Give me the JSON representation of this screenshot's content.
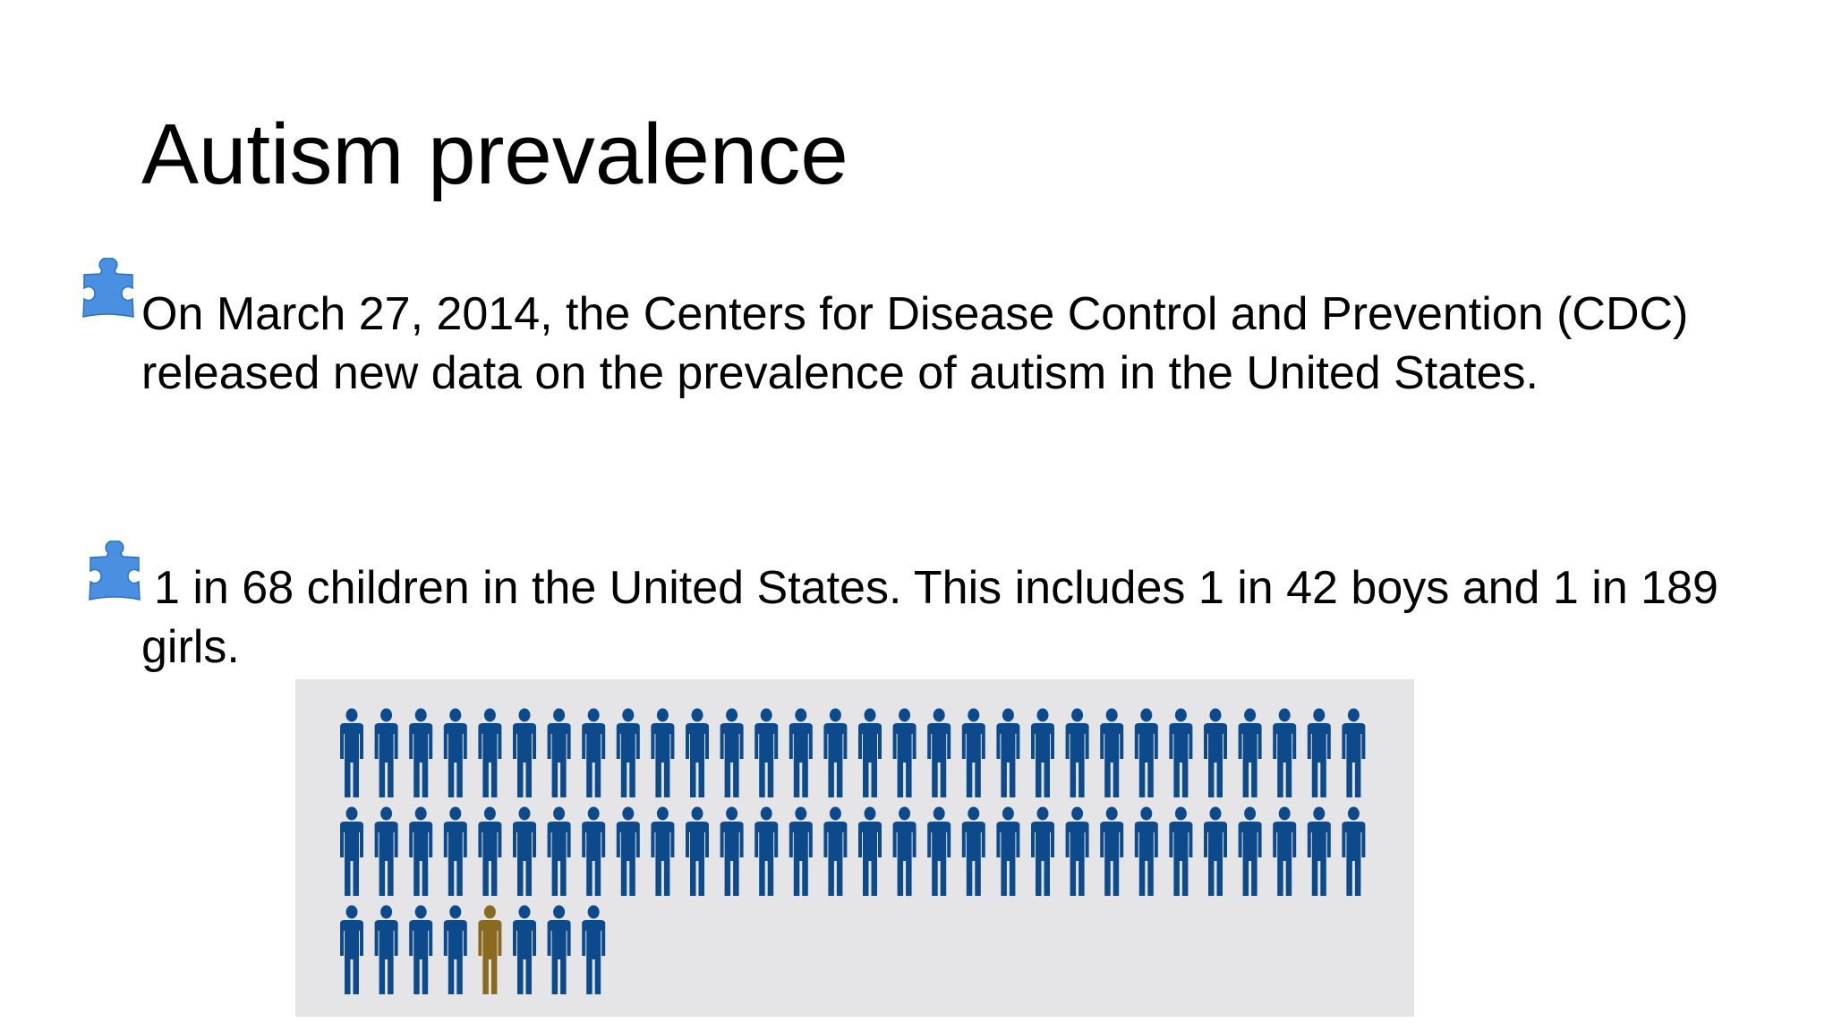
{
  "slide": {
    "title": "Autism prevalence",
    "bullets": [
      "On March 27, 2014, the Centers for Disease Control and Prevention (CDC) released new data on the prevalence of autism in the United States.",
      "1 in 68 children in the United States. This includes 1 in 42 boys and 1 in 189 girls."
    ],
    "bullet_icon": "puzzle-piece-icon",
    "bullet_icon_color": "#4a90e2"
  },
  "infographic": {
    "total_figures": 68,
    "figures_per_row": 30,
    "highlighted_figure_number": 65,
    "figure_color": "#0d4a8c",
    "highlight_color": "#8a6a1e",
    "background_color": "#e5e5e7"
  }
}
